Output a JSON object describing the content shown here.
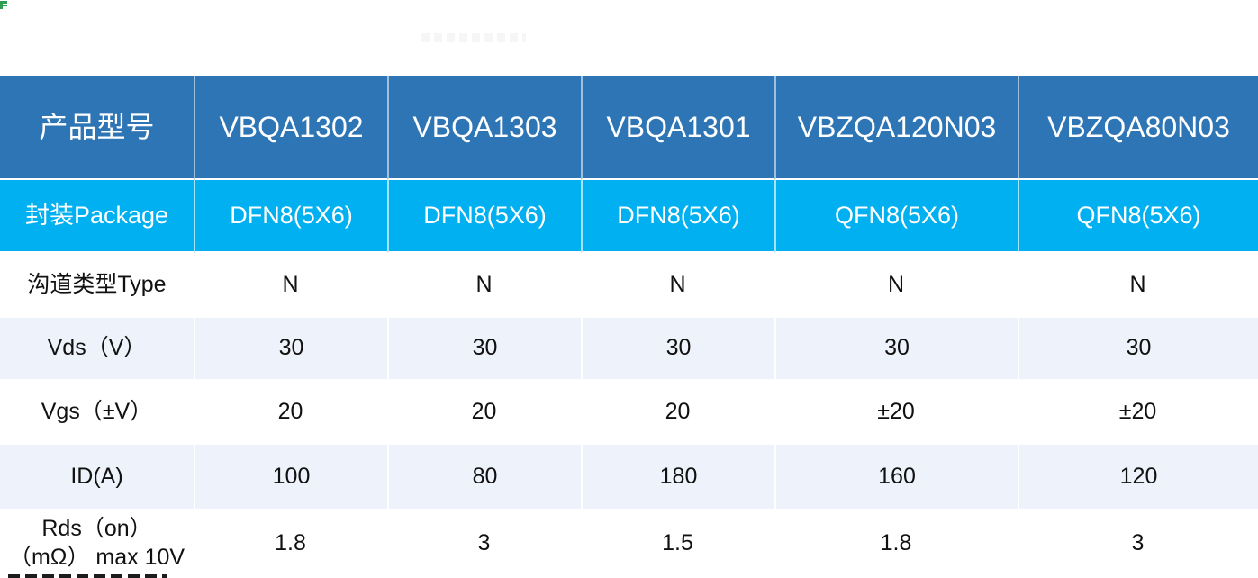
{
  "page": {
    "background": "#ffffff",
    "decorations": {
      "corner_icon": "green-mark-icon",
      "watermark": "faint illegible gray smudge above table"
    }
  },
  "table": {
    "colors": {
      "header_bg": "#2E75B5",
      "header_text": "#FFFFFF",
      "package_bg": "#00B0F0",
      "package_text": "#FFFFFF",
      "stripe_bg": "#EEF3FB",
      "white_bg": "#FFFFFF",
      "body_text": "#111111"
    },
    "columns": [
      "产品型号",
      "VBQA1302",
      "VBQA1303",
      "VBQA1301",
      "VBZQA120N03",
      "VBZQA80N03"
    ],
    "rows": [
      {
        "label": "封装Package",
        "values": [
          "DFN8(5X6)",
          "DFN8(5X6)",
          "DFN8(5X6)",
          "QFN8(5X6)",
          "QFN8(5X6)"
        ]
      },
      {
        "label": "沟道类型Type",
        "values": [
          "N",
          "N",
          "N",
          "N",
          "N"
        ]
      },
      {
        "label": "Vds（V）",
        "values": [
          "30",
          "30",
          "30",
          "30",
          "30"
        ]
      },
      {
        "label": "Vgs（±V）",
        "values": [
          "20",
          "20",
          "20",
          "±20",
          "±20"
        ]
      },
      {
        "label": "ID(A)",
        "values": [
          "100",
          "80",
          "180",
          "160",
          "120"
        ]
      },
      {
        "label": "Rds（on） （mΩ） max 10V",
        "values": [
          "1.8",
          "3",
          "1.5",
          "1.8",
          "3"
        ]
      }
    ]
  }
}
